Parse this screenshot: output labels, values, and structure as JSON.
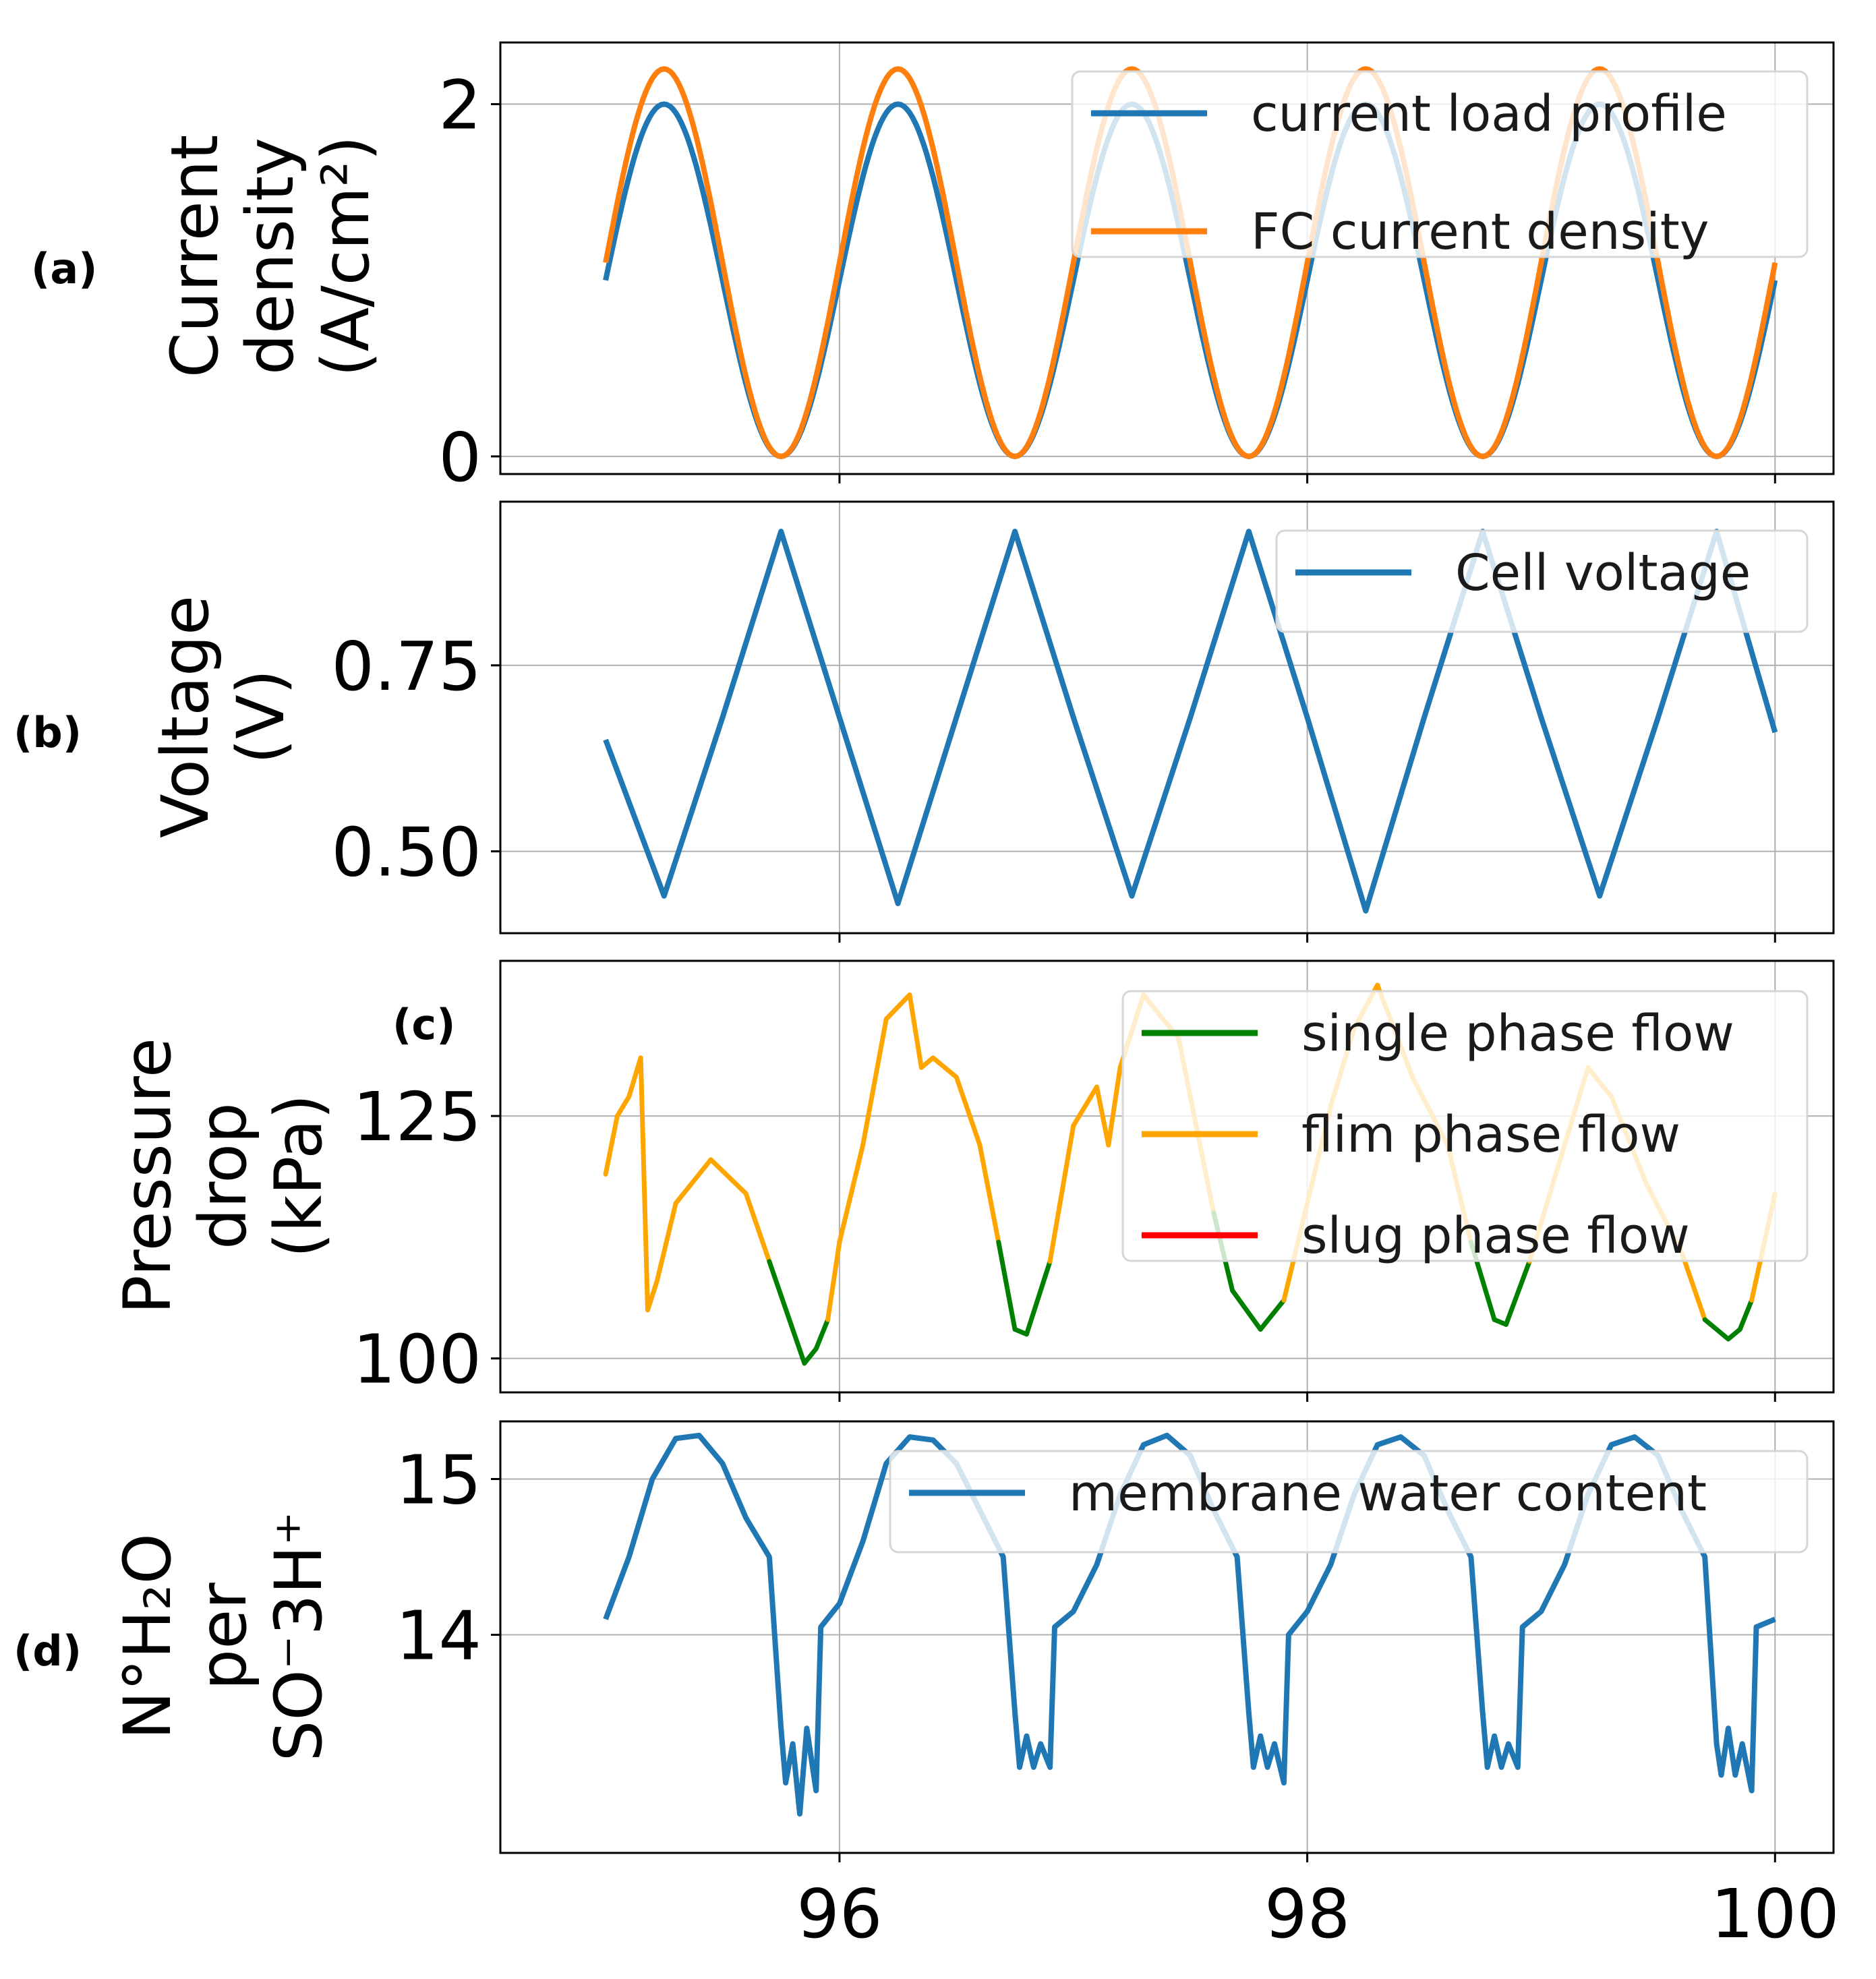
{
  "chart_data": [
    {
      "id": "a",
      "type": "line",
      "panel_label": "(a)",
      "ylabel_lines": [
        "Current",
        "density",
        "(A/cm²)"
      ],
      "xlim": [
        94.55,
        100.25
      ],
      "ylim": [
        -0.1,
        2.35
      ],
      "yticks": [
        0,
        2
      ],
      "ytick_labels": [
        "0",
        "2"
      ],
      "xticks": [
        96,
        98,
        100
      ],
      "grid": true,
      "legend": {
        "loc": "upper right"
      },
      "series": [
        {
          "name": "current load profile",
          "color": "#1f77b4",
          "kind": "sine",
          "offset": 1.0,
          "amp": 1.0,
          "period": 1.0,
          "x0": 95.0,
          "x1": 100.0,
          "phase": 0.0
        },
        {
          "name": "FC current density",
          "color": "#ff7f0e",
          "kind": "sine",
          "offset": 1.1,
          "amp": 1.1,
          "period": 1.0,
          "x0": 95.0,
          "x1": 100.0,
          "phase": 0.0
        }
      ]
    },
    {
      "id": "b",
      "type": "line",
      "panel_label": "(b)",
      "ylabel_lines": [
        "Voltage",
        "(V)"
      ],
      "xlim": [
        94.55,
        100.25
      ],
      "ylim": [
        0.39,
        0.97
      ],
      "yticks": [
        0.5,
        0.75
      ],
      "ytick_labels": [
        "0.50",
        "0.75"
      ],
      "xticks": [
        96,
        98,
        100
      ],
      "grid": true,
      "legend": {
        "loc": "upper right"
      },
      "series": [
        {
          "name": "Cell voltage",
          "color": "#1f77b4",
          "kind": "points",
          "x": [
            95.0,
            95.25,
            95.5,
            95.75,
            96.0,
            96.25,
            96.5,
            96.75,
            97.0,
            97.25,
            97.5,
            97.75,
            98.0,
            98.25,
            98.5,
            98.75,
            99.0,
            99.25,
            99.5,
            99.75,
            100.0
          ],
          "y": [
            0.65,
            0.44,
            0.68,
            0.93,
            0.68,
            0.43,
            0.68,
            0.93,
            0.68,
            0.44,
            0.68,
            0.93,
            0.68,
            0.42,
            0.68,
            0.93,
            0.68,
            0.44,
            0.68,
            0.93,
            0.66
          ]
        }
      ]
    },
    {
      "id": "c",
      "type": "line",
      "panel_label": "(c)",
      "ylabel_lines": [
        "Pressure",
        "drop",
        "(kPa)"
      ],
      "xlim": [
        94.55,
        100.25
      ],
      "ylim": [
        96.5,
        141.0
      ],
      "yticks": [
        100,
        125
      ],
      "ytick_labels": [
        "100",
        "125"
      ],
      "xticks": [
        96,
        98,
        100
      ],
      "grid": true,
      "legend": {
        "loc": "upper right"
      },
      "series": [
        {
          "name": "single phase flow",
          "color": "#008000",
          "kind": "segments"
        },
        {
          "name": "flim phase flow",
          "color": "#ffa500",
          "kind": "segments"
        },
        {
          "name": "slug phase flow",
          "color": "#ff0000",
          "kind": "segments"
        }
      ],
      "flow": {
        "x": [
          95.0,
          95.05,
          95.1,
          95.15,
          95.18,
          95.22,
          95.3,
          95.45,
          95.6,
          95.7,
          95.8,
          95.85,
          95.9,
          95.95,
          96.0,
          96.1,
          96.2,
          96.3,
          96.35,
          96.4,
          96.5,
          96.6,
          96.68,
          96.75,
          96.8,
          96.9,
          97.0,
          97.1,
          97.15,
          97.2,
          97.3,
          97.45,
          97.6,
          97.68,
          97.8,
          97.9,
          98.0,
          98.1,
          98.2,
          98.3,
          98.45,
          98.6,
          98.7,
          98.8,
          98.85,
          98.95,
          99.1,
          99.2,
          99.3,
          99.45,
          99.6,
          99.7,
          99.8,
          99.85,
          99.9,
          100.0
        ],
        "y": [
          119.0,
          125.0,
          127.0,
          131.0,
          105.0,
          108.0,
          116.0,
          120.5,
          117.0,
          110.0,
          103.0,
          99.5,
          101.0,
          104.0,
          112.0,
          122.0,
          135.0,
          137.5,
          130.0,
          131.0,
          129.0,
          122.0,
          112.0,
          103.0,
          102.5,
          110.0,
          124.0,
          128.0,
          122.0,
          130.0,
          137.5,
          133.0,
          115.0,
          107.0,
          103.0,
          106.0,
          116.0,
          126.0,
          134.0,
          138.5,
          129.0,
          122.0,
          112.0,
          104.0,
          103.5,
          110.0,
          122.0,
          130.0,
          127.0,
          118.0,
          111.0,
          104.0,
          102.0,
          103.0,
          106.0,
          117.0
        ],
        "phase": [
          "film",
          "film",
          "film",
          "film",
          "film",
          "film",
          "film",
          "film",
          "film",
          "single",
          "single",
          "single",
          "single",
          "film",
          "film",
          "film",
          "film",
          "film",
          "film",
          "film",
          "film",
          "film",
          "single",
          "single",
          "single",
          "film",
          "film",
          "film",
          "film",
          "film",
          "film",
          "film",
          "single",
          "single",
          "single",
          "film",
          "film",
          "film",
          "film",
          "film",
          "film",
          "film",
          "single",
          "single",
          "single",
          "film",
          "film",
          "film",
          "film",
          "film",
          "film",
          "single",
          "single",
          "single",
          "film",
          "film"
        ]
      }
    },
    {
      "id": "d",
      "type": "line",
      "panel_label": "(d)",
      "ylabel_lines": [
        "N°H₂O",
        "per",
        "SO⁻3H⁺"
      ],
      "xlim": [
        94.55,
        100.25
      ],
      "ylim": [
        12.6,
        15.37
      ],
      "yticks": [
        14,
        15
      ],
      "ytick_labels": [
        "14",
        "15"
      ],
      "xticks": [
        96,
        98,
        100
      ],
      "xtick_labels": [
        "96",
        "98",
        "100"
      ],
      "grid": true,
      "legend": {
        "loc": "upper right"
      },
      "series": [
        {
          "name": "membrane water content",
          "color": "#1f77b4",
          "kind": "points",
          "x": [
            95.0,
            95.1,
            95.2,
            95.3,
            95.4,
            95.5,
            95.6,
            95.7,
            95.75,
            95.77,
            95.8,
            95.83,
            95.86,
            95.9,
            95.92,
            96.0,
            96.1,
            96.2,
            96.3,
            96.4,
            96.5,
            96.6,
            96.7,
            96.75,
            96.77,
            96.8,
            96.83,
            96.86,
            96.9,
            96.92,
            97.0,
            97.1,
            97.2,
            97.3,
            97.4,
            97.5,
            97.6,
            97.7,
            97.75,
            97.77,
            97.8,
            97.83,
            97.86,
            97.9,
            97.92,
            98.0,
            98.1,
            98.2,
            98.3,
            98.4,
            98.5,
            98.6,
            98.7,
            98.75,
            98.77,
            98.8,
            98.83,
            98.86,
            98.9,
            98.92,
            99.0,
            99.1,
            99.2,
            99.3,
            99.4,
            99.5,
            99.6,
            99.7,
            99.75,
            99.77,
            99.8,
            99.83,
            99.86,
            99.9,
            99.92,
            100.0
          ],
          "y": [
            14.1,
            14.5,
            15.0,
            15.26,
            15.28,
            15.1,
            14.75,
            14.5,
            13.4,
            13.05,
            13.3,
            12.85,
            13.4,
            13.0,
            14.05,
            14.2,
            14.6,
            15.1,
            15.27,
            15.25,
            15.1,
            14.8,
            14.5,
            13.5,
            13.15,
            13.35,
            13.15,
            13.3,
            13.15,
            14.05,
            14.15,
            14.45,
            14.9,
            15.22,
            15.28,
            15.15,
            14.8,
            14.5,
            13.5,
            13.15,
            13.35,
            13.15,
            13.3,
            13.05,
            14.0,
            14.15,
            14.45,
            14.9,
            15.22,
            15.27,
            15.15,
            14.8,
            14.5,
            13.5,
            13.15,
            13.35,
            13.15,
            13.3,
            13.15,
            14.05,
            14.15,
            14.45,
            14.9,
            15.22,
            15.27,
            15.15,
            14.8,
            14.5,
            13.3,
            13.1,
            13.4,
            13.1,
            13.3,
            13.0,
            14.05,
            14.1
          ]
        }
      ]
    }
  ]
}
